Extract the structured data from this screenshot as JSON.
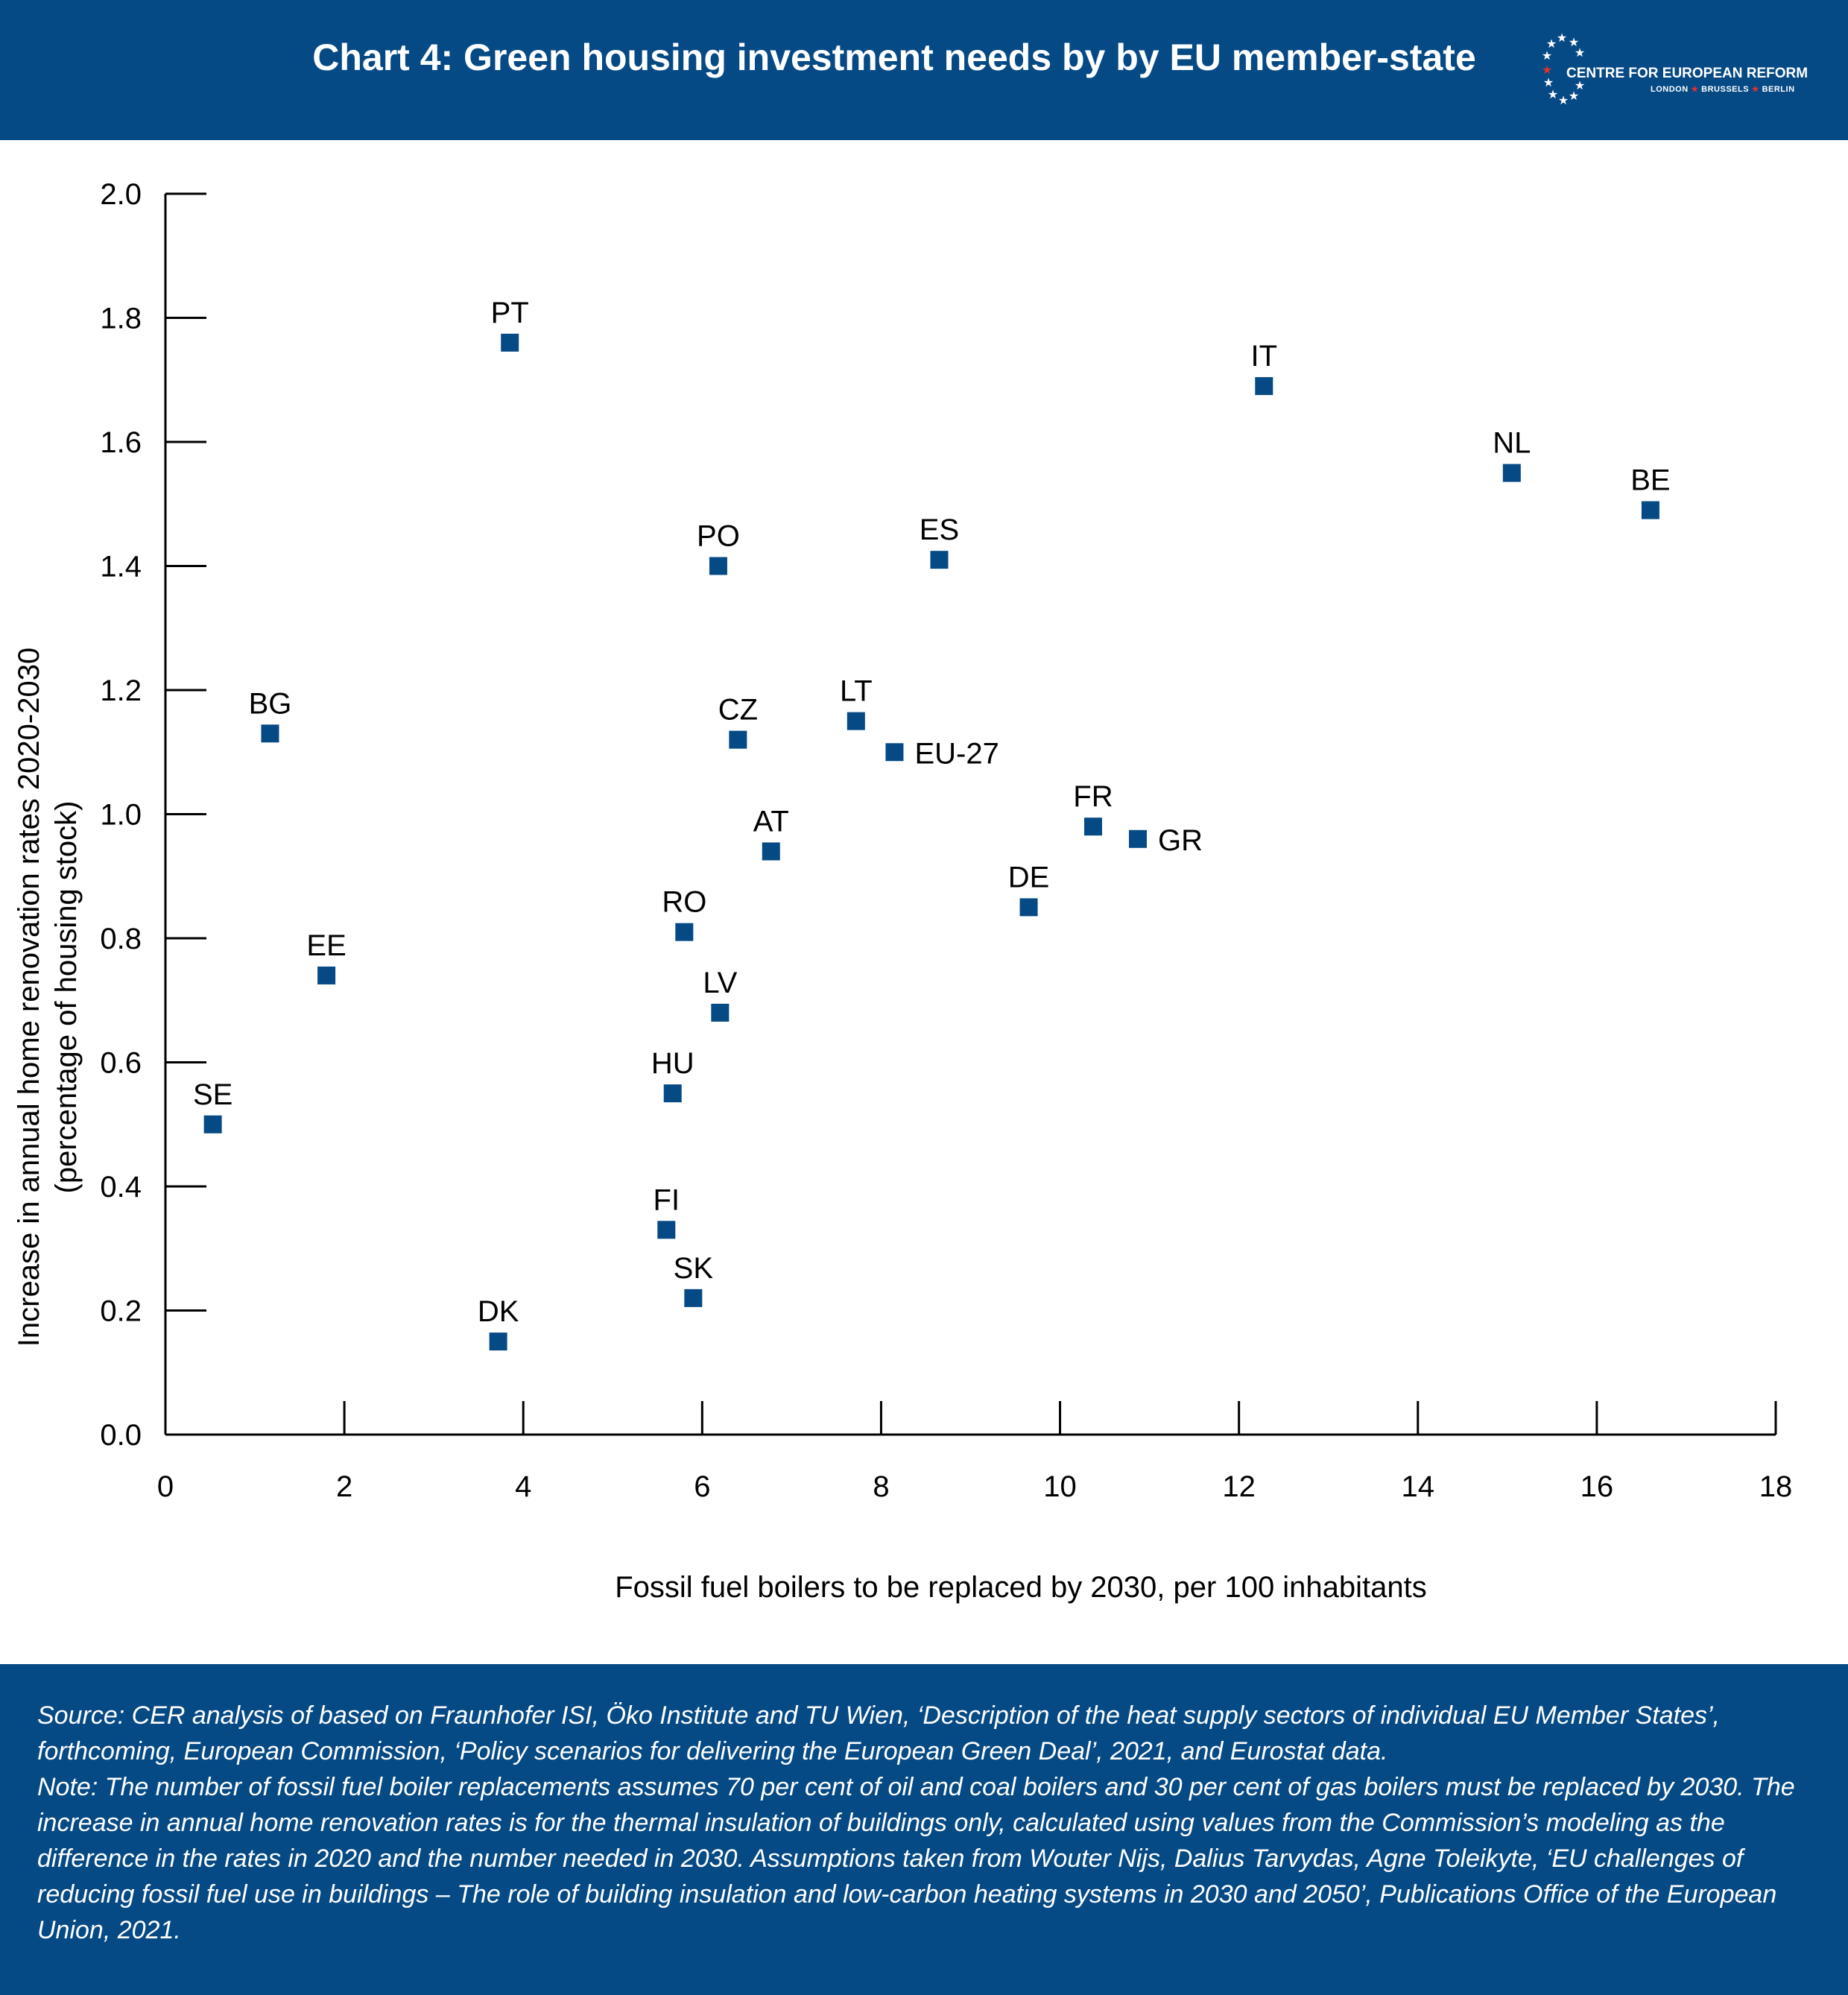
{
  "header": {
    "title": "Chart 4: Green housing investment needs by by EU member-state",
    "logo": {
      "name": "CENTRE FOR EUROPEAN REFORM",
      "cities": [
        "LONDON",
        "BRUSSELS",
        "BERLIN"
      ]
    },
    "background_color": "#054a85"
  },
  "chart_data": {
    "type": "scatter",
    "xlabel": "Fossil fuel boilers to be replaced by 2030, per 100 inhabitants",
    "ylabel": "Increase in annual home renovation rates 2020-2030",
    "ylabel2": "(percentage of housing stock)",
    "xlim": [
      0,
      18
    ],
    "ylim": [
      0,
      2.0
    ],
    "x_ticks": [
      "0",
      "2",
      "4",
      "6",
      "8",
      "10",
      "12",
      "14",
      "16",
      "18"
    ],
    "y_ticks": [
      "0.0",
      "0.2",
      "0.4",
      "0.6",
      "0.8",
      "1.0",
      "1.2",
      "1.4",
      "1.6",
      "1.8",
      "2.0"
    ],
    "grid": false,
    "marker_color": "#054a85",
    "points": [
      {
        "label": "PT",
        "x": 3.85,
        "y": 1.76
      },
      {
        "label": "IT",
        "x": 12.28,
        "y": 1.69
      },
      {
        "label": "NL",
        "x": 15.05,
        "y": 1.55
      },
      {
        "label": "BE",
        "x": 16.6,
        "y": 1.49
      },
      {
        "label": "PO",
        "x": 6.18,
        "y": 1.4
      },
      {
        "label": "ES",
        "x": 8.65,
        "y": 1.41
      },
      {
        "label": "BG",
        "x": 1.17,
        "y": 1.13
      },
      {
        "label": "CZ",
        "x": 6.4,
        "y": 1.12
      },
      {
        "label": "LT",
        "x": 7.72,
        "y": 1.15
      },
      {
        "label": "EU-27",
        "x": 8.15,
        "y": 1.1
      },
      {
        "label": "FR",
        "x": 10.37,
        "y": 0.98
      },
      {
        "label": "GR",
        "x": 10.87,
        "y": 0.96
      },
      {
        "label": "AT",
        "x": 6.77,
        "y": 0.94
      },
      {
        "label": "DE",
        "x": 9.65,
        "y": 0.85
      },
      {
        "label": "RO",
        "x": 5.8,
        "y": 0.81
      },
      {
        "label": "EE",
        "x": 1.8,
        "y": 0.74
      },
      {
        "label": "LV",
        "x": 6.2,
        "y": 0.68
      },
      {
        "label": "HU",
        "x": 5.67,
        "y": 0.55
      },
      {
        "label": "SE",
        "x": 0.53,
        "y": 0.5
      },
      {
        "label": "FI",
        "x": 5.6,
        "y": 0.33
      },
      {
        "label": "SK",
        "x": 5.9,
        "y": 0.22
      },
      {
        "label": "DK",
        "x": 3.72,
        "y": 0.15
      }
    ]
  },
  "footer": {
    "source": "Source: CER analysis of based on Fraunhofer ISI, Öko Institute and TU Wien, ‘Description of the heat supply sectors of individual EU Member States’, forthcoming, European Commission, ‘Policy scenarios for delivering the European Green Deal’, 2021, and Eurostat data.",
    "note": "Note: The number of fossil fuel boiler replacements assumes 70 per cent of oil and coal boilers and 30 per cent of gas boilers must be replaced by 2030. The increase in annual home renovation rates is for the thermal insulation of buildings only, calculated using values from the Commission’s modeling as the difference in the rates in 2020 and the number needed in 2030. Assumptions taken from Wouter Nijs, Dalius Tarvydas, Agne Toleikyte, ‘EU challenges of reducing fossil fuel use in buildings – The role of building insulation and low-carbon heating systems in 2030 and 2050’, Publications Office of the European Union, 2021."
  }
}
